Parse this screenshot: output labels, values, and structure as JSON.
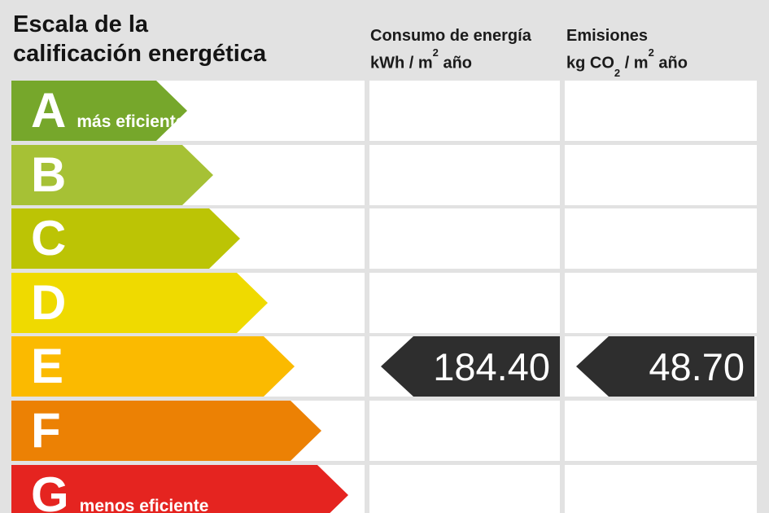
{
  "title": {
    "line1": "Escala de la",
    "line2": "calificación energética"
  },
  "columns": [
    {
      "title": "Consumo de energía",
      "unit": {
        "p1": "kWh / m",
        "sup": "2",
        "p2": " año"
      }
    },
    {
      "title": "Emisiones",
      "unit": {
        "p1": "kg CO",
        "sub": "2",
        "p2": " / m",
        "sup": "2",
        "p3": " año"
      }
    }
  ],
  "scale": {
    "rows": [
      {
        "letter": "A",
        "tag": "más eficiente",
        "color": "#76a72b",
        "arrow_width": 216
      },
      {
        "letter": "B",
        "tag": "",
        "color": "#a6c135",
        "arrow_width": 248
      },
      {
        "letter": "C",
        "tag": "",
        "color": "#bcc405",
        "arrow_width": 281
      },
      {
        "letter": "D",
        "tag": "",
        "color": "#efda00",
        "arrow_width": 315
      },
      {
        "letter": "E",
        "tag": "",
        "color": "#fbba00",
        "arrow_width": 348
      },
      {
        "letter": "F",
        "tag": "",
        "color": "#ec8104",
        "arrow_width": 381
      },
      {
        "letter": "G",
        "tag": "menos eficiente",
        "color": "#e52420",
        "arrow_width": 414
      }
    ]
  },
  "values": {
    "rating_row": "E",
    "consumo": "184.40",
    "emisiones": "48.70",
    "arrow_color": "#2e2e2e"
  },
  "colors": {
    "background": "#e2e2e2",
    "cell": "#ffffff",
    "text": "#141414"
  },
  "chart_data": {
    "type": "bar",
    "orientation": "horizontal",
    "title": "Escala de la calificación energética",
    "categories": [
      "A",
      "B",
      "C",
      "D",
      "E",
      "F",
      "G"
    ],
    "bar_colors": [
      "#76a72b",
      "#a6c135",
      "#bcc405",
      "#efda00",
      "#fbba00",
      "#ec8104",
      "#e52420"
    ],
    "annotations": {
      "A": "más eficiente",
      "G": "menos eficiente"
    },
    "rating": "E",
    "series": [
      {
        "name": "Consumo de energía (kWh/m² año)",
        "rating": "E",
        "value": 184.4
      },
      {
        "name": "Emisiones (kg CO₂/m² año)",
        "rating": "E",
        "value": 48.7
      }
    ],
    "legend_position": "top",
    "grid": false
  }
}
